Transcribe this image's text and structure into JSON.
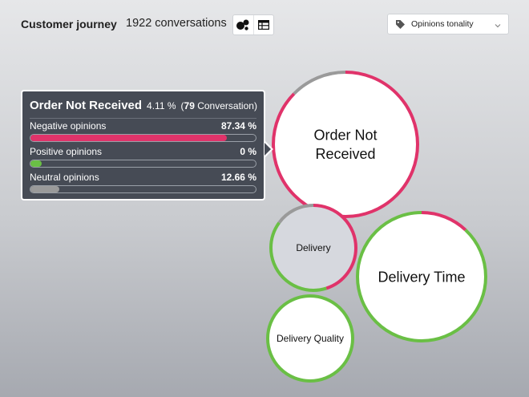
{
  "header": {
    "title": "Customer journey",
    "conversations": "1922 conversations",
    "view_icons": [
      "bubble-chart-icon",
      "table-icon"
    ],
    "dropdown": {
      "label": "Opinions tonality",
      "icon": "tag-icon"
    }
  },
  "tooltip": {
    "topic": "Order Not Received",
    "percent": "4.11 %",
    "paren_open": "(",
    "count": "79",
    "unit": "Conversation",
    "paren_close": ")",
    "rows": [
      {
        "label": "Negative opinions",
        "value": "87.34 %",
        "fill": 0.8734,
        "color": "#e0336a"
      },
      {
        "label": "Positive opinions",
        "value": "0 %",
        "fill": 0.05,
        "color": "#6abf45"
      },
      {
        "label": "Neutral opinions",
        "value": "12.66 %",
        "fill": 0.1266,
        "color": "#9a9a9a"
      }
    ]
  },
  "colors": {
    "negative": "#e0336a",
    "positive": "#6abf45",
    "neutral": "#9a9a9a"
  },
  "bubbles": [
    {
      "name": "Order Not Received",
      "line1": "Order Not",
      "line2": "Received",
      "negative": 0.8734,
      "positive": 0.0,
      "neutral": 0.1266,
      "selected": true
    },
    {
      "name": "Delivery",
      "line1": "Delivery",
      "line2": "",
      "negative": 0.45,
      "positive": 0.4,
      "neutral": 0.15,
      "selected": false
    },
    {
      "name": "Delivery Time",
      "line1": "Delivery Time",
      "line2": "",
      "negative": 0.12,
      "positive": 0.88,
      "neutral": 0.0,
      "selected": false
    },
    {
      "name": "Delivery Quality",
      "line1": "Delivery Quality",
      "line2": "",
      "negative": 0.0,
      "positive": 1.0,
      "neutral": 0.0,
      "selected": false
    }
  ]
}
